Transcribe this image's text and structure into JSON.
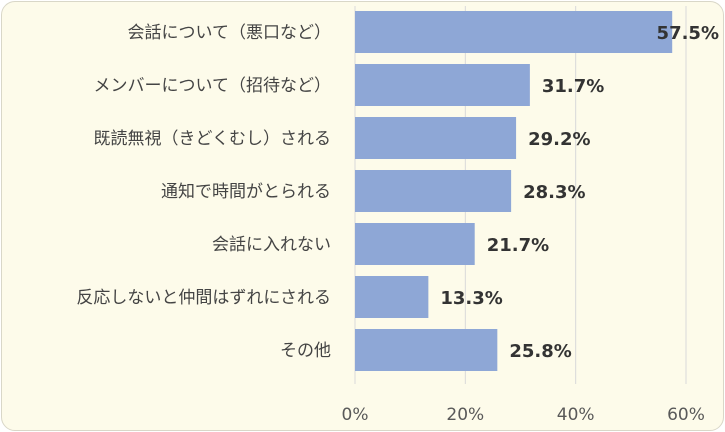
{
  "chart_data": {
    "type": "bar",
    "orientation": "horizontal",
    "categories": [
      "会話について（悪口など）",
      "メンバーについて（招待など）",
      "既読無視（きどくむし）される",
      "通知で時間がとられる",
      "会話に入れない",
      "反応しないと仲間はずれにされる",
      "その他"
    ],
    "values": [
      57.5,
      31.7,
      29.2,
      28.3,
      21.7,
      13.3,
      25.8
    ],
    "data_labels": [
      "57.5%",
      "31.7%",
      "29.2%",
      "28.3%",
      "21.7%",
      "13.3%",
      "25.8%"
    ],
    "xlim": [
      0,
      60
    ],
    "x_ticks": [
      0,
      20,
      40,
      60
    ],
    "x_tick_labels": [
      "0%",
      "20%",
      "40%",
      "60%"
    ],
    "grid": true,
    "legend": "none",
    "colors": {
      "bar": "#8ea7d6",
      "background": "#fdfbea"
    }
  }
}
